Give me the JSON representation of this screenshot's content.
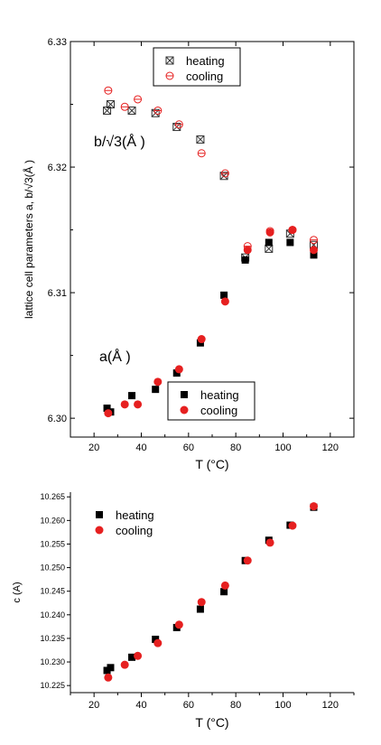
{
  "chart_data": [
    {
      "type": "scatter",
      "xlabel": "T (°C)",
      "ylabel": "lattice cell parameters a, b/√3(Å )",
      "xlim": [
        10,
        130
      ],
      "ylim": [
        6.2985,
        6.33
      ],
      "xticks": [
        20,
        40,
        60,
        80,
        100,
        120
      ],
      "yticks": [
        6.3,
        6.31,
        6.32,
        6.33
      ],
      "ytick_labels": [
        "6.30",
        "6.31",
        "6.32",
        "6.33"
      ],
      "grid": false,
      "annotations": [
        "b/√3(Å )",
        "a(Å )"
      ],
      "legends": [
        {
          "entries": [
            "heating",
            "cooling"
          ],
          "placement": "top-center"
        },
        {
          "entries": [
            "heating",
            "cooling"
          ],
          "placement": "bottom-center"
        }
      ],
      "series": [
        {
          "name": "heating",
          "param": "b/√3",
          "marker": "crossed-square",
          "color": "#333333",
          "points": [
            [
              25.5,
              6.3245
            ],
            [
              27,
              6.325
            ],
            [
              36,
              6.3245
            ],
            [
              46,
              6.3243
            ],
            [
              55,
              6.3232
            ],
            [
              65,
              6.3222
            ],
            [
              75,
              6.3193
            ],
            [
              84,
              6.3128
            ],
            [
              94,
              6.3135
            ],
            [
              103,
              6.3147
            ],
            [
              113,
              6.3138
            ]
          ]
        },
        {
          "name": "cooling",
          "param": "b/√3",
          "marker": "open-circle-bar",
          "color": "#e62020",
          "points": [
            [
              26,
              6.3261
            ],
            [
              33,
              6.3248
            ],
            [
              38.5,
              6.3254
            ],
            [
              47,
              6.3245
            ],
            [
              56,
              6.3234
            ],
            [
              65.5,
              6.3211
            ],
            [
              75.5,
              6.3195
            ],
            [
              85,
              6.3137
            ],
            [
              94.5,
              6.3149
            ],
            [
              104,
              6.315
            ],
            [
              113,
              6.3142
            ]
          ]
        },
        {
          "name": "heating",
          "param": "a",
          "marker": "filled-square",
          "color": "#000000",
          "points": [
            [
              25.5,
              6.3008
            ],
            [
              27,
              6.3005
            ],
            [
              36,
              6.3018
            ],
            [
              46,
              6.3023
            ],
            [
              55,
              6.3036
            ],
            [
              65,
              6.306
            ],
            [
              75,
              6.3098
            ],
            [
              84,
              6.3126
            ],
            [
              94,
              6.314
            ],
            [
              103,
              6.314
            ],
            [
              113,
              6.313
            ]
          ]
        },
        {
          "name": "cooling",
          "param": "a",
          "marker": "filled-circle",
          "color": "#e62020",
          "points": [
            [
              26,
              6.3004
            ],
            [
              33,
              6.3011
            ],
            [
              38.5,
              6.3011
            ],
            [
              47,
              6.3029
            ],
            [
              56,
              6.3039
            ],
            [
              65.5,
              6.3063
            ],
            [
              75.5,
              6.3093
            ],
            [
              85,
              6.3134
            ],
            [
              94.5,
              6.3148
            ],
            [
              104,
              6.315
            ],
            [
              113,
              6.3134
            ]
          ]
        }
      ]
    },
    {
      "type": "scatter",
      "xlabel": "T (°C)",
      "ylabel": "c (A)",
      "xlim": [
        10,
        130
      ],
      "ylim": [
        10.2235,
        10.266
      ],
      "xticks": [
        20,
        40,
        60,
        80,
        100,
        120
      ],
      "yticks": [
        10.225,
        10.23,
        10.235,
        10.24,
        10.245,
        10.25,
        10.255,
        10.26,
        10.265
      ],
      "ytick_labels": [
        "10.225",
        "10.230",
        "10.235",
        "10.240",
        "10.245",
        "10.250",
        "10.255",
        "10.260",
        "10.265"
      ],
      "grid": false,
      "legend": {
        "entries": [
          "heating",
          "cooling"
        ],
        "placement": "top-left"
      },
      "series": [
        {
          "name": "heating",
          "marker": "filled-square",
          "color": "#000000",
          "points": [
            [
              25.5,
              10.2282
            ],
            [
              27,
              10.2288
            ],
            [
              36,
              10.231
            ],
            [
              46,
              10.2348
            ],
            [
              55,
              10.2373
            ],
            [
              65,
              10.2412
            ],
            [
              75,
              10.2449
            ],
            [
              84,
              10.2515
            ],
            [
              94,
              10.2558
            ],
            [
              103,
              10.259
            ],
            [
              113,
              10.2628
            ]
          ]
        },
        {
          "name": "cooling",
          "marker": "filled-circle",
          "color": "#e62020",
          "points": [
            [
              26,
              10.2267
            ],
            [
              33,
              10.2294
            ],
            [
              38.5,
              10.2313
            ],
            [
              47,
              10.234
            ],
            [
              56,
              10.2379
            ],
            [
              65.5,
              10.2427
            ],
            [
              75.5,
              10.2462
            ],
            [
              85,
              10.2515
            ],
            [
              94.5,
              10.2553
            ],
            [
              104,
              10.2589
            ],
            [
              113,
              10.263
            ]
          ]
        }
      ]
    }
  ]
}
